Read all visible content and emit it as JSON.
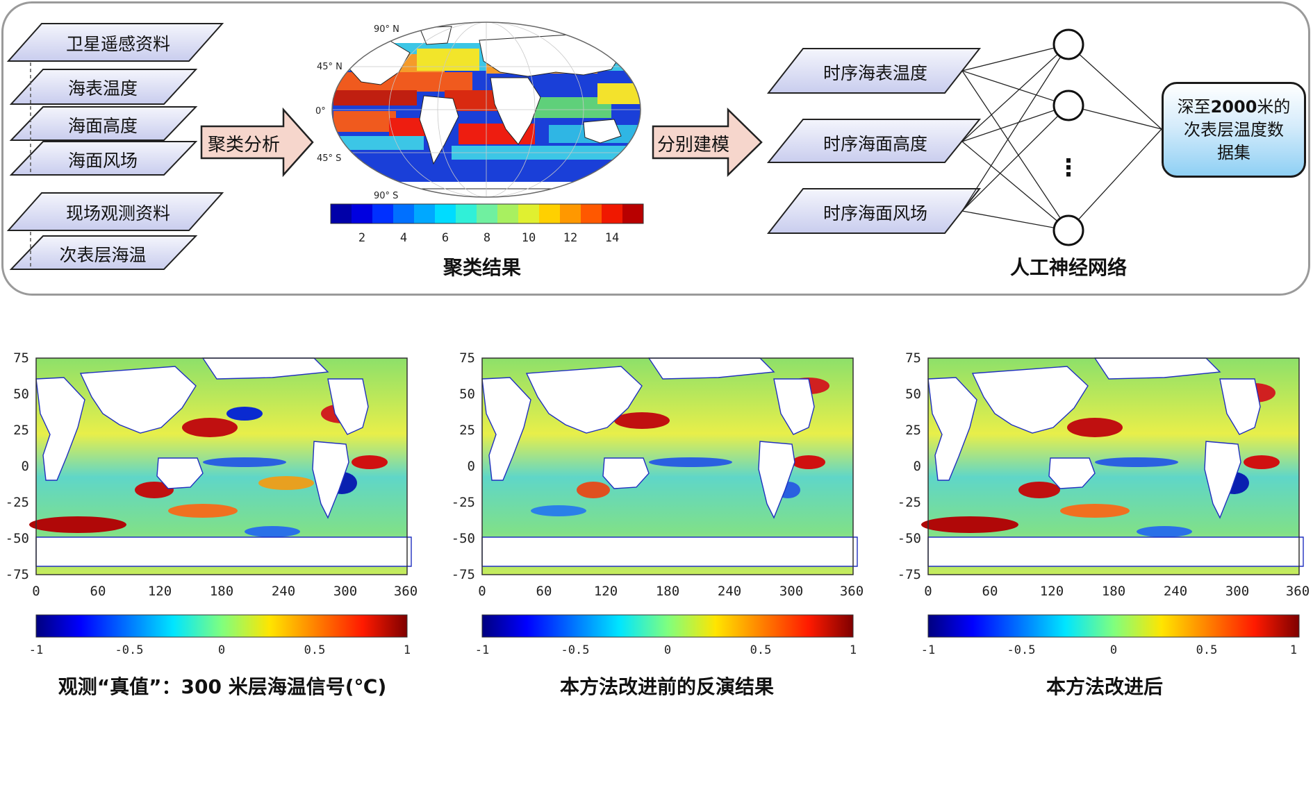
{
  "inputs": {
    "satellite": "卫星遥感资料",
    "sst": "海表温度",
    "ssh": "海面高度",
    "ssw": "海面风场",
    "insitu": "现场观测资料",
    "subsurface": "次表层海温"
  },
  "arrows": {
    "cluster": "聚类分析",
    "model": "分别建模"
  },
  "cluster_map": {
    "lat_labels": [
      "90° N",
      "45° N",
      "0°",
      "45° S",
      "90° S"
    ],
    "colorbar_ticks": [
      "2",
      "4",
      "6",
      "8",
      "10",
      "12",
      "14"
    ],
    "caption": "聚类结果"
  },
  "timeseries": {
    "sst": "时序海表温度",
    "ssh": "时序海面高度",
    "ssw": "时序海面风场"
  },
  "nn": {
    "ellipsis": "⋮",
    "caption": "人工神经网络"
  },
  "output": {
    "line1_pre": "深至",
    "line1_bold": "2000",
    "line1_post": "米的",
    "line2": "次表层温度数",
    "line3": "据集"
  },
  "maps": {
    "y_ticks": [
      "75",
      "50",
      "25",
      "0",
      "-25",
      "-50",
      "-75"
    ],
    "x_ticks": [
      "0",
      "60",
      "120",
      "180",
      "240",
      "300",
      "360"
    ],
    "cb_ticks": [
      "-1",
      "-0.5",
      "0",
      "0.5",
      "1"
    ],
    "captions": [
      "观测“真值”：300 米层海温信号(℃)",
      "本方法改进前的反演结果",
      "本方法改进后"
    ]
  },
  "colors": {
    "parallelogram_fill": "#e1e4f7",
    "arrow_fill": "#f6d6cc",
    "panel_border": "#9a9a9a",
    "coast": "#1f2fbf"
  }
}
